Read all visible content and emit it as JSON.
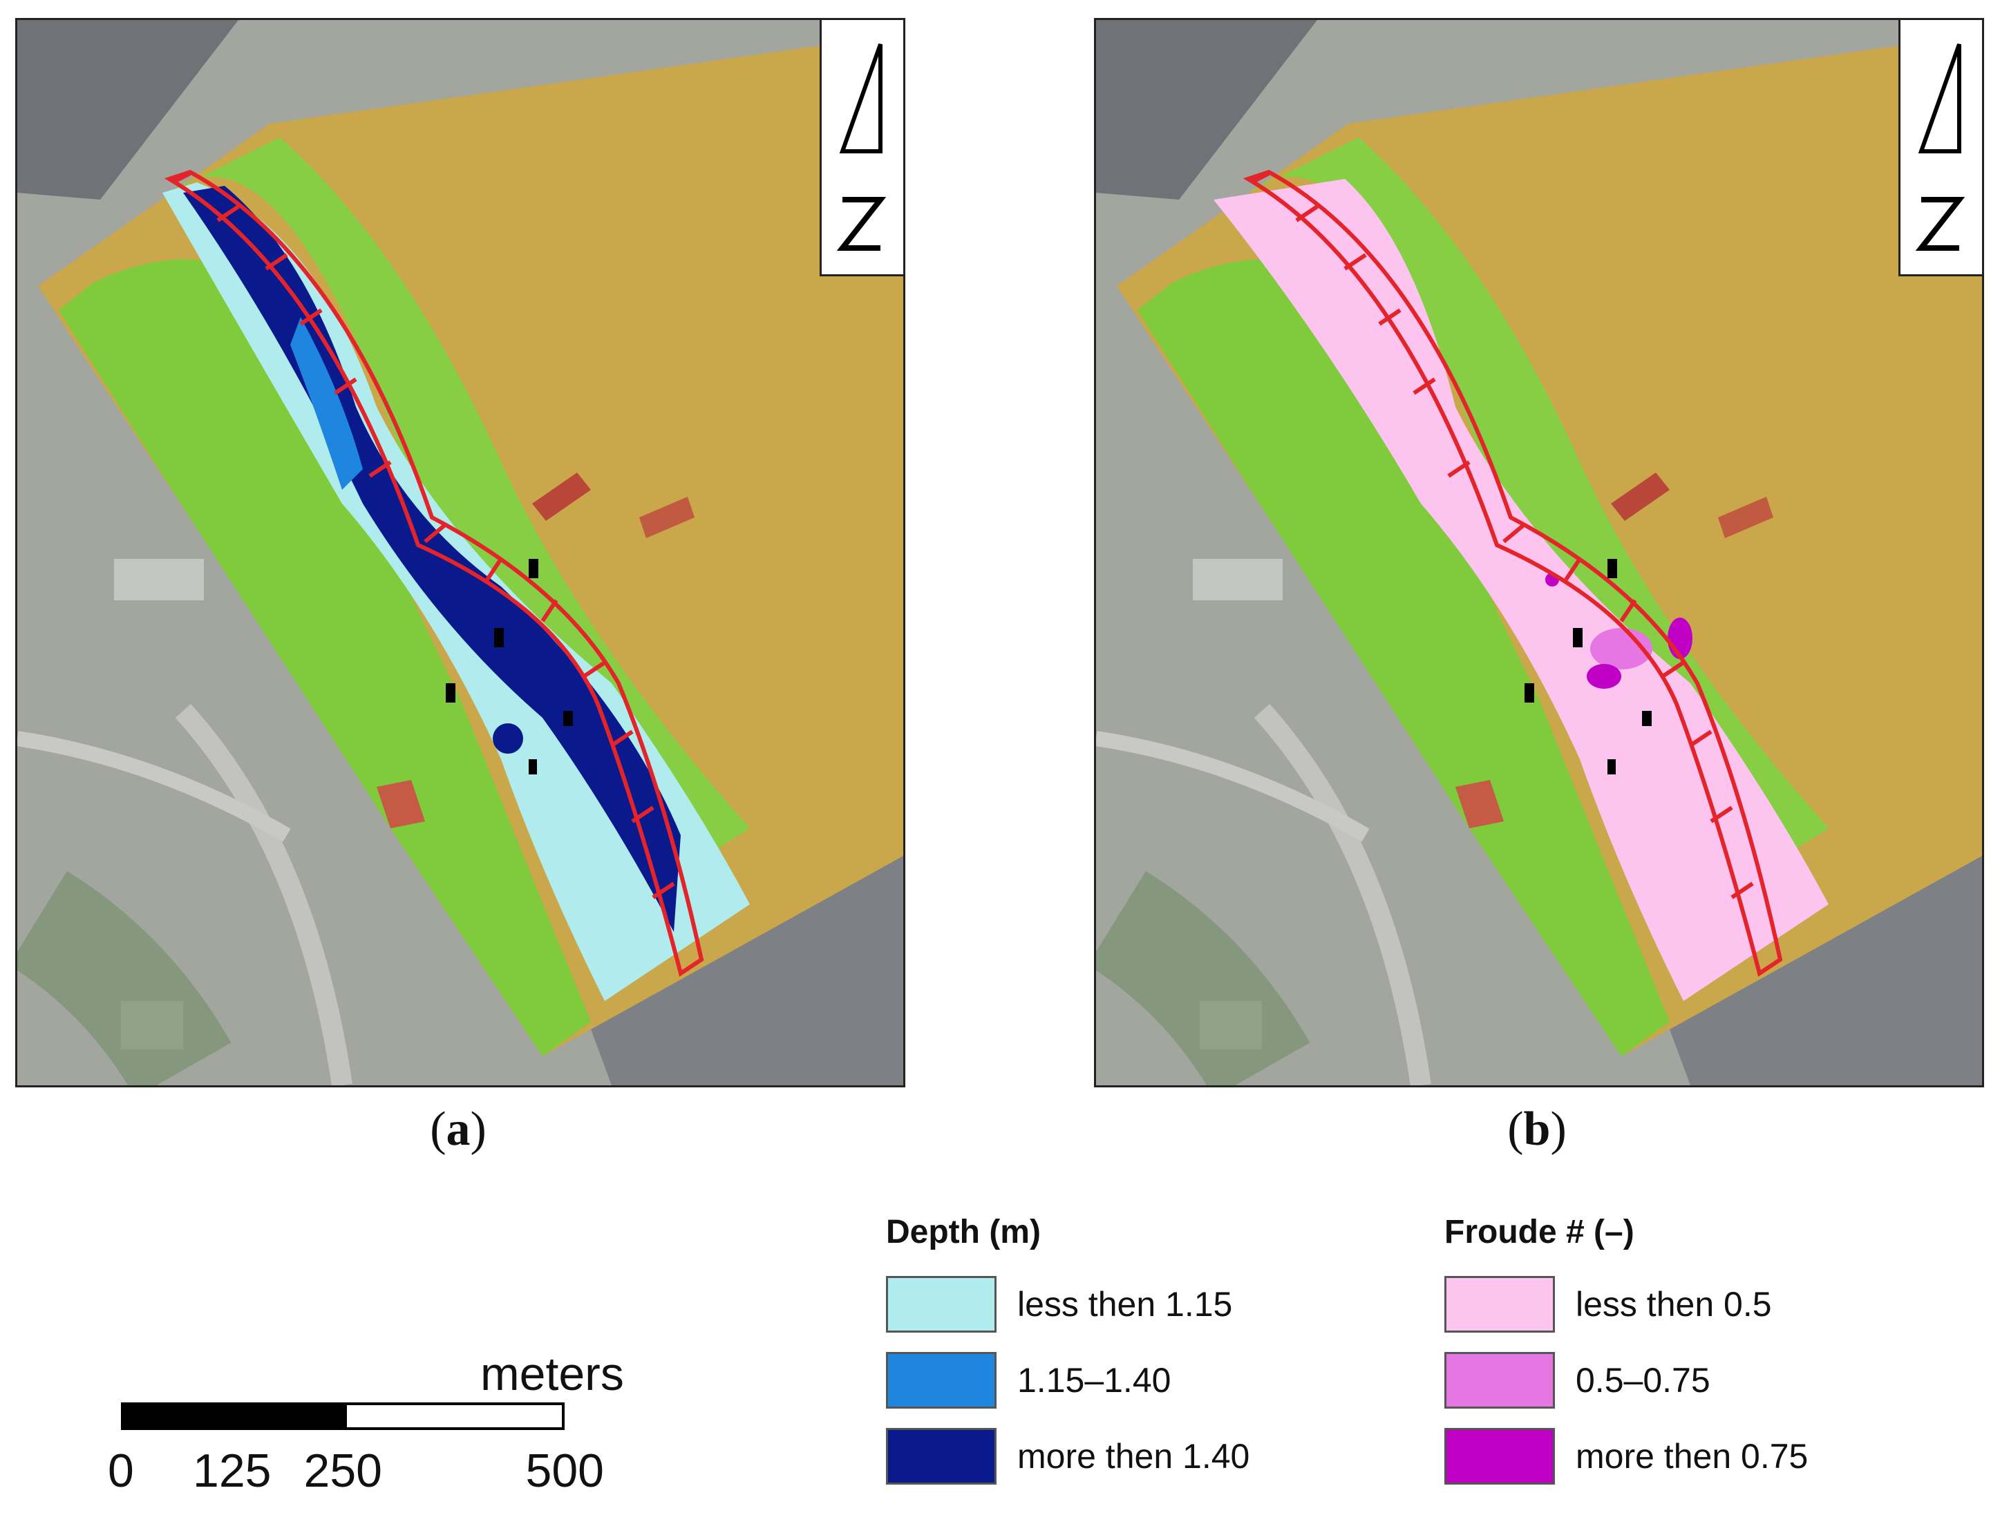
{
  "panels": [
    {
      "id": "a",
      "label": "a",
      "layer": "depth"
    },
    {
      "id": "b",
      "label": "b",
      "layer": "froude"
    }
  ],
  "north_arrow": {
    "label": "N"
  },
  "legend_depth": {
    "title": "Depth (m)",
    "items": [
      {
        "label": "less then 1.15",
        "color": "#b0ecee"
      },
      {
        "label": "1.15–1.40",
        "color": "#1e86de"
      },
      {
        "label": "more then 1.40",
        "color": "#0a1a8c"
      }
    ]
  },
  "legend_froude": {
    "title": "Froude # (–)",
    "items": [
      {
        "label": "less then 0.5",
        "color": "#fcc4ee"
      },
      {
        "label": "0.5–0.75",
        "color": "#e676e2"
      },
      {
        "label": "more then 0.75",
        "color": "#c000c4"
      }
    ]
  },
  "scale": {
    "unit": "meters",
    "ticks": [
      "0",
      "125",
      "250",
      "500"
    ],
    "tick_values": [
      0,
      125,
      250,
      500
    ],
    "max": 500
  },
  "colors": {
    "floodplain_green": "#7fcb3c",
    "terrain_tan": "#c9a74a",
    "embankment_red": "#b8473a",
    "structure_outline": "#e3242b",
    "aerial_gray": "#9fa29c"
  }
}
